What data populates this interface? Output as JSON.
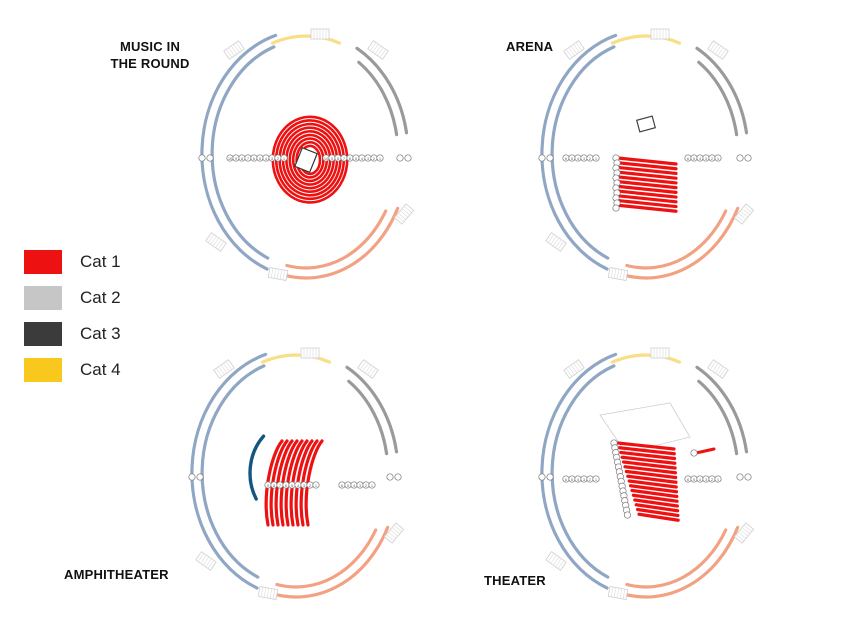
{
  "layouts": [
    {
      "id": "music-in-the-round",
      "title_lines": [
        "MUSIC IN",
        "THE ROUND"
      ],
      "cat1_rows": 9,
      "row_numbers": [
        "10",
        "9",
        "8",
        "7",
        "6",
        "5",
        "4",
        "3",
        "2",
        "1"
      ]
    },
    {
      "id": "arena",
      "title_lines": [
        "ARENA"
      ],
      "cat1_rows": 11,
      "row_numbers": [
        "6",
        "5",
        "4",
        "3",
        "2",
        "1"
      ]
    },
    {
      "id": "amphitheater",
      "title_lines": [
        "AMPHITHEATER"
      ],
      "cat1_rows": 9,
      "row_numbers": [
        "9",
        "8",
        "7",
        "6",
        "5",
        "4",
        "3",
        "2",
        "1"
      ]
    },
    {
      "id": "theater",
      "title_lines": [
        "THEATER"
      ],
      "cat1_rows": 16,
      "row_numbers": [
        "6",
        "5",
        "4",
        "3",
        "2",
        "1"
      ]
    }
  ],
  "legend": [
    {
      "label": "Cat 1",
      "color": "#ee1111"
    },
    {
      "label": "Cat 2",
      "color": "#c6c6c6"
    },
    {
      "label": "Cat 3",
      "color": "#3b3b3b"
    },
    {
      "label": "Cat 4",
      "color": "#f8c81c"
    }
  ],
  "colors": {
    "cat1": "#ee1111",
    "cat2": "#c6c6c6",
    "cat3": "#3b3b3b",
    "cat4": "#f8c81c",
    "blue": "#15567f",
    "outer_blue": "#8fa6c4",
    "outer_salmon": "#f2a183",
    "outer_yellow": "#f9de87",
    "outer_gray": "#9a9a9a"
  }
}
